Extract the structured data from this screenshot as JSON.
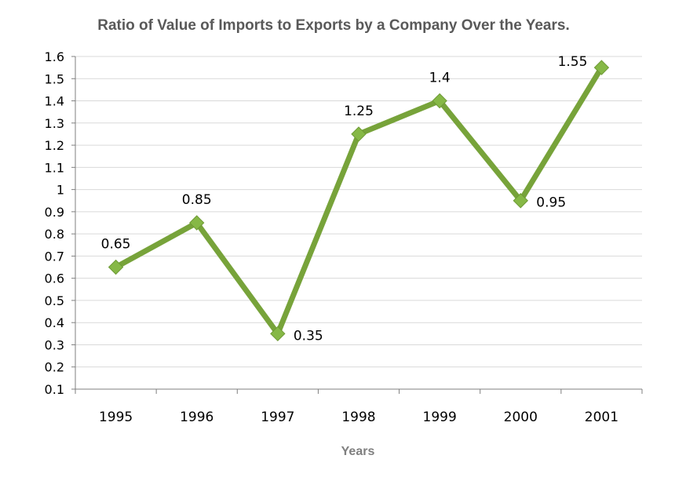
{
  "chart_data": {
    "type": "line",
    "title": "Ratio of Value of Imports to Exports by a Company Over the Years.",
    "xlabel": "Years",
    "ylabel": "",
    "categories": [
      "1995",
      "1996",
      "1997",
      "1998",
      "1999",
      "2000",
      "2001"
    ],
    "series": [
      {
        "values": [
          0.65,
          0.85,
          0.35,
          1.25,
          1.4,
          0.95,
          1.55
        ]
      }
    ],
    "data_labels": [
      "0.65",
      "0.85",
      "0.35",
      "1.25",
      "1.4",
      "0.95",
      "1.55"
    ],
    "y_ticks": [
      "0.1",
      "0.2",
      "0.3",
      "0.4",
      "0.5",
      "0.6",
      "0.7",
      "0.8",
      "0.9",
      "1",
      "1.1",
      "1.2",
      "1.3",
      "1.4",
      "1.5",
      "1.6"
    ],
    "ylim": [
      0.1,
      1.6
    ],
    "grid": true,
    "legend": "none",
    "line_color": "#77a33a",
    "marker_color": "#86b846",
    "grid_color": "#d9d9d9"
  }
}
